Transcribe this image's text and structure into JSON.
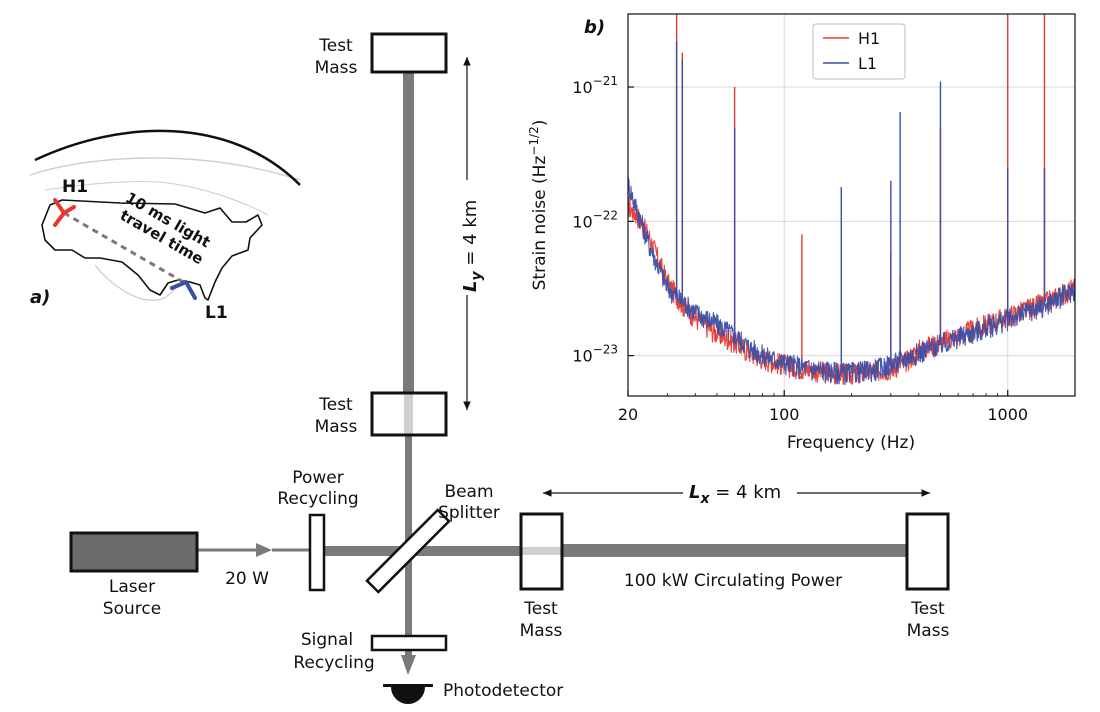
{
  "panel_a": {
    "panel_label": "a)",
    "site_h1": "H1",
    "site_l1": "L1",
    "travel_line1": "10 ms light",
    "travel_line2": "travel time",
    "colors": {
      "h1": "#e8392e",
      "l1": "#3b4fa8",
      "land": "#111111"
    }
  },
  "interferometer": {
    "ly_label_main": "L",
    "ly_label_sub": "y",
    "ly_label_value": " = 4 km",
    "lx_label_main": "L",
    "lx_label_sub": "x",
    "lx_label_value": " = 4 km",
    "test_mass_line1": "Test",
    "test_mass_line2": "Mass",
    "power_recycling_line1": "Power",
    "power_recycling_line2": "Recycling",
    "beam_splitter_line1": "Beam",
    "beam_splitter_line2": "Splitter",
    "laser_line1": "Laser",
    "laser_line2": "Source",
    "laser_power": "20 W",
    "circulating_power": "100 kW Circulating Power",
    "signal_recycling_line1": "Signal",
    "signal_recycling_line2": "Recycling",
    "photodetector": "Photodetector",
    "colors": {
      "beam": "#7a7a7a",
      "beam_light": "#cfcfcf",
      "laser_fill": "#6b6b6b"
    }
  },
  "chart_data": {
    "type": "line",
    "panel_label": "b)",
    "xlabel": "Frequency (Hz)",
    "ylabel_main": "Strain noise (Hz",
    "ylabel_exp": "−1/2",
    "ylabel_close": ")",
    "xscale": "log",
    "yscale": "log",
    "xlim": [
      20,
      2000
    ],
    "ylim": [
      5e-24,
      3.5e-21
    ],
    "grid": true,
    "legend_position": "top-center",
    "x_ticks": [
      {
        "value": 20,
        "label": "20"
      },
      {
        "value": 100,
        "label": "100"
      },
      {
        "value": 1000,
        "label": "1000"
      }
    ],
    "y_ticks": [
      {
        "value": 1e-23,
        "base": "10",
        "exp": "−23"
      },
      {
        "value": 1e-22,
        "base": "10",
        "exp": "−22"
      },
      {
        "value": 1e-21,
        "base": "10",
        "exp": "−21"
      }
    ],
    "series": [
      {
        "name": "H1",
        "color": "#e8392e",
        "x": [
          20,
          22,
          25,
          30,
          35,
          40,
          50,
          60,
          70,
          80,
          100,
          120,
          150,
          180,
          200,
          250,
          300,
          350,
          400,
          500,
          600,
          800,
          1000,
          1500,
          2000
        ],
        "y": [
          1.3e-22,
          1.1e-22,
          7.5e-23,
          3.5e-23,
          2.4e-23,
          1.9e-23,
          1.45e-23,
          1.25e-23,
          1.05e-23,
          9.5e-24,
          8.5e-24,
          8e-24,
          7.5e-24,
          7.3e-24,
          7.3e-24,
          7.6e-24,
          8e-24,
          9e-24,
          1.1e-23,
          1.25e-23,
          1.4e-23,
          1.7e-23,
          1.95e-23,
          2.5e-23,
          3.2e-23
        ],
        "lines": [
          {
            "f": 33,
            "amp": 3.5e-21
          },
          {
            "f": 35,
            "amp": 1.8e-21
          },
          {
            "f": 60,
            "amp": 1e-21
          },
          {
            "f": 120,
            "amp": 8e-23
          },
          {
            "f": 300,
            "amp": 6e-23
          },
          {
            "f": 330,
            "amp": 4e-23
          },
          {
            "f": 500,
            "amp": 5e-22
          },
          {
            "f": 1000,
            "amp": 3.5e-21
          },
          {
            "f": 1460,
            "amp": 3.5e-21
          }
        ]
      },
      {
        "name": "L1",
        "color": "#3b4fa8",
        "x": [
          20,
          22,
          25,
          30,
          35,
          40,
          50,
          60,
          70,
          80,
          100,
          120,
          150,
          180,
          200,
          250,
          300,
          350,
          400,
          500,
          600,
          800,
          1000,
          1500,
          2000
        ],
        "y": [
          1.9e-22,
          1.2e-22,
          6.5e-23,
          3.2e-23,
          2.5e-23,
          2.1e-23,
          1.7e-23,
          1.4e-23,
          1.15e-23,
          1e-23,
          8.8e-24,
          8.2e-24,
          7.7e-24,
          7.4e-24,
          7.4e-24,
          7.8e-24,
          8.5e-24,
          9.5e-24,
          1.05e-23,
          1.2e-23,
          1.35e-23,
          1.6e-23,
          1.85e-23,
          2.4e-23,
          3.1e-23
        ],
        "lines": [
          {
            "f": 33,
            "amp": 2.2e-21
          },
          {
            "f": 35,
            "amp": 1.6e-21
          },
          {
            "f": 60,
            "amp": 5e-22
          },
          {
            "f": 180,
            "amp": 1.8e-22
          },
          {
            "f": 300,
            "amp": 2e-22
          },
          {
            "f": 330,
            "amp": 6.5e-22
          },
          {
            "f": 500,
            "amp": 1.1e-21
          },
          {
            "f": 1000,
            "amp": 2.5e-22
          },
          {
            "f": 1460,
            "amp": 2.5e-22
          }
        ]
      }
    ]
  }
}
